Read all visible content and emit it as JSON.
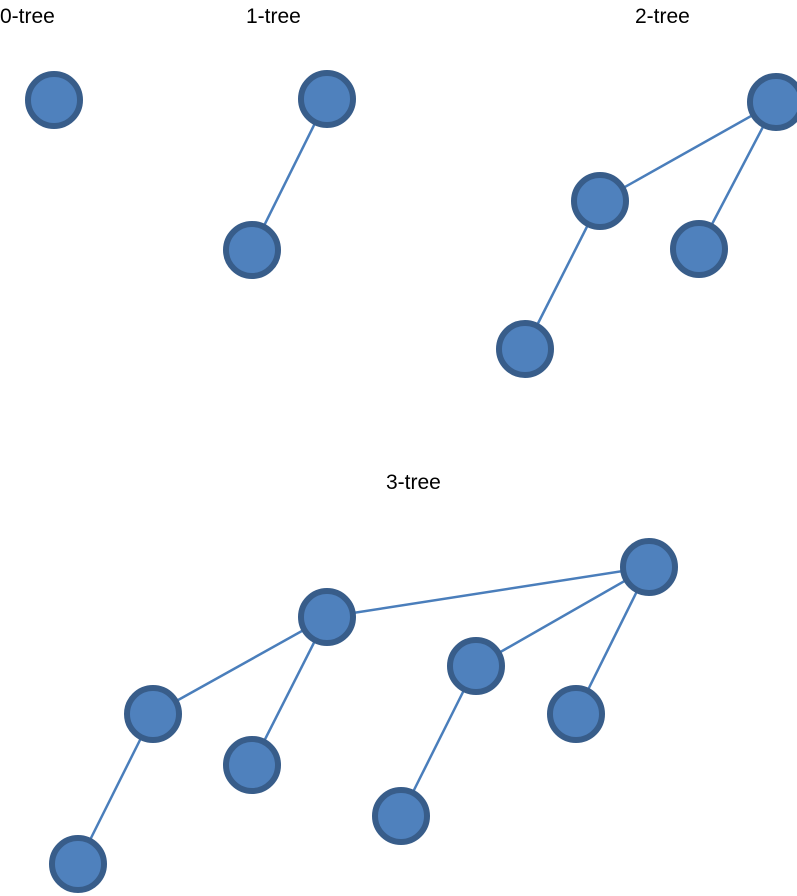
{
  "labels": {
    "tree0": "0-tree",
    "tree1": "1-tree",
    "tree2": "2-tree",
    "tree3": "3-tree"
  },
  "colors": {
    "edge": "#4a7ebb",
    "node_fill": "#4f81bd",
    "node_stroke": "#385d8a"
  }
}
